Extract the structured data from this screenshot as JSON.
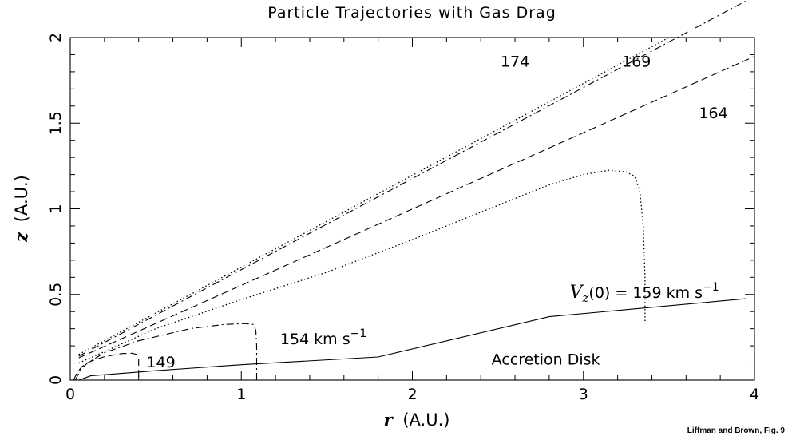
{
  "chart_data": {
    "type": "line",
    "title": "Particle Trajectories with Gas Drag",
    "xlabel_var": "r",
    "xlabel_unit": "(A.U.)",
    "ylabel_var": "z",
    "ylabel_unit": "(A.U.)",
    "xlim": [
      0,
      4
    ],
    "ylim": [
      0,
      2
    ],
    "xticks": [
      {
        "v": 0,
        "label": "0"
      },
      {
        "v": 1,
        "label": "1"
      },
      {
        "v": 2,
        "label": "2"
      },
      {
        "v": 3,
        "label": "3"
      },
      {
        "v": 4,
        "label": "4"
      }
    ],
    "yticks": [
      {
        "v": 0,
        "label": "0"
      },
      {
        "v": 0.5,
        "label": "0.5"
      },
      {
        "v": 1,
        "label": "1"
      },
      {
        "v": 1.5,
        "label": "1.5"
      },
      {
        "v": 2,
        "label": "2"
      }
    ],
    "grid": false,
    "series": [
      {
        "dash": "solid",
        "x": [
          0.05,
          0.12,
          0.5,
          1.0,
          1.8,
          2.8,
          3.95
        ],
        "y": [
          0.0,
          0.025,
          0.055,
          0.09,
          0.135,
          0.37,
          0.475
        ]
      },
      {
        "dash": "dash",
        "x": [
          0.02,
          0.04,
          0.07,
          0.12,
          0.2,
          0.3,
          0.36,
          0.39,
          0.4,
          0.4,
          0.4
        ],
        "y": [
          0.0,
          0.045,
          0.08,
          0.11,
          0.137,
          0.155,
          0.157,
          0.15,
          0.12,
          0.05,
          0.0
        ]
      },
      {
        "dash": "dashdot",
        "x": [
          0.03,
          0.06,
          0.1,
          0.2,
          0.4,
          0.7,
          0.9,
          1.02,
          1.07,
          1.085,
          1.09,
          1.09,
          1.09
        ],
        "y": [
          0.0,
          0.06,
          0.1,
          0.16,
          0.23,
          0.3,
          0.325,
          0.33,
          0.325,
          0.29,
          0.2,
          0.08,
          0.0
        ]
      },
      {
        "dash": "dot",
        "x": [
          0.05,
          0.5,
          1.0,
          1.5,
          2.0,
          2.5,
          2.8,
          3.0,
          3.15,
          3.25,
          3.3,
          3.33,
          3.35,
          3.36,
          3.36
        ],
        "y": [
          0.1,
          0.3,
          0.47,
          0.63,
          0.82,
          1.02,
          1.14,
          1.2,
          1.225,
          1.215,
          1.19,
          1.1,
          0.9,
          0.6,
          0.33
        ]
      },
      {
        "dash": "dash",
        "x": [
          0.05,
          4.0
        ],
        "y": [
          0.13,
          1.89
        ]
      },
      {
        "dash": "dashdot",
        "x": [
          0.05,
          4.0
        ],
        "y": [
          0.14,
          2.24
        ]
      },
      {
        "dash": "dot",
        "x": [
          0.05,
          3.5
        ],
        "y": [
          0.15,
          2.0
        ]
      }
    ],
    "annotations": [
      {
        "text": "174",
        "x": 2.6,
        "y": 1.83
      },
      {
        "text": "169",
        "x": 3.31,
        "y": 1.83
      },
      {
        "text": "164",
        "x": 3.76,
        "y": 1.53
      },
      {
        "text": "149",
        "x": 0.53,
        "y": 0.075
      },
      {
        "text": "Accretion Disk",
        "x": 2.78,
        "y": 0.09
      }
    ],
    "vz_label": {
      "var": "V",
      "sub": "z",
      "rest": "(0) = 159 km s",
      "sup": "−1",
      "x": 2.92,
      "y": 0.48
    },
    "km_label": {
      "rest": "154 km s",
      "sup": "−1",
      "x": 1.48,
      "y": 0.21
    },
    "credit": "Liffman and Brown, Fig. 9"
  }
}
